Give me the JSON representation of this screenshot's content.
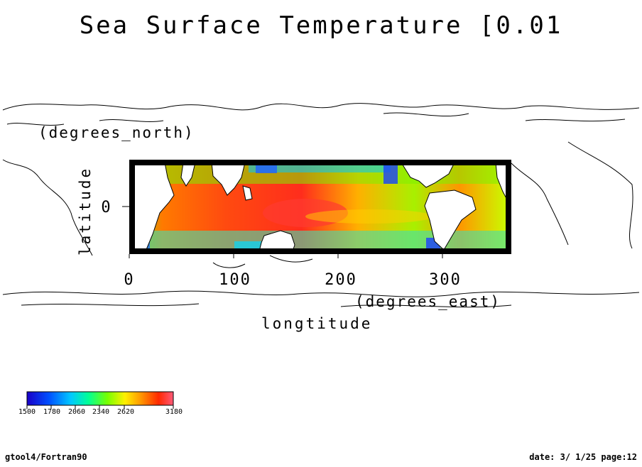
{
  "chart_data": {
    "type": "heatmap",
    "title": "Sea Surface Temperature [0.01",
    "xlabel": "longtitude",
    "xunit": "(degrees_east)",
    "ylabel": "latitude",
    "yunit": "(degrees_north)",
    "x_ticks": [
      "0",
      "100",
      "200",
      "300"
    ],
    "y_ticks": [
      "0"
    ],
    "xlim": [
      0,
      360
    ],
    "colorbar": {
      "tick_labels": [
        "1500",
        "1780",
        "2060",
        "2340",
        "2620",
        "3180"
      ],
      "range": [
        1500,
        3180
      ],
      "colormap": [
        "#1a00c8",
        "#0050ff",
        "#00c8ff",
        "#00ff96",
        "#78ff00",
        "#fff000",
        "#ff9600",
        "#ff2800",
        "#ff5a78"
      ]
    },
    "grid": false
  },
  "footer": {
    "left": "gtool4/Fortran90",
    "right": "date: 3/ 1/25 page:12"
  }
}
